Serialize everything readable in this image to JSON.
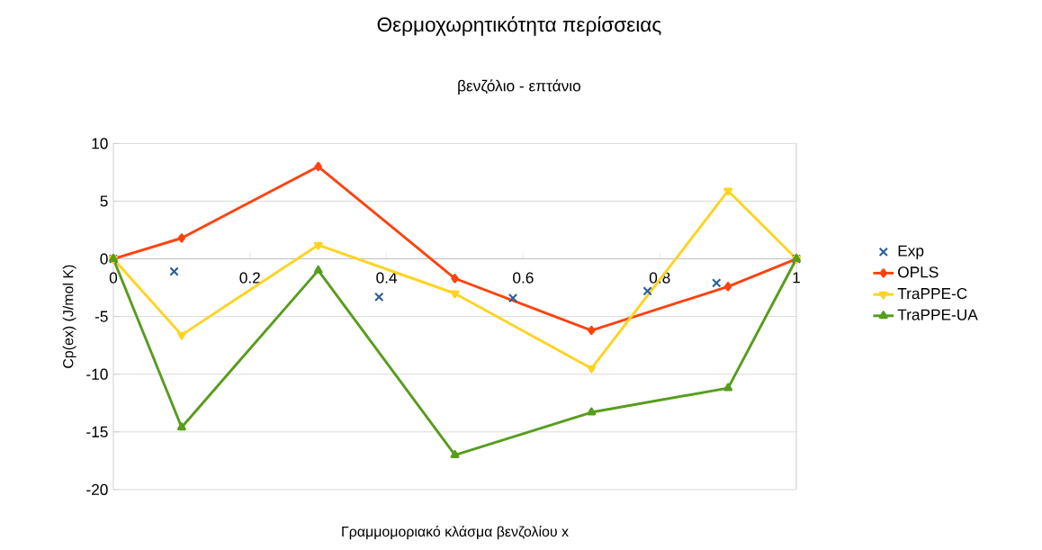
{
  "chart_data": {
    "type": "line",
    "title": "Θερμοχωρητικότητα περίσσειας",
    "subtitle": "βενζόλιο - επτάνιο",
    "xlabel": "Γραμμομοριακό κλάσμα βενζολίου x",
    "ylabel": "Cp(ex) (J/mol K)",
    "xlim": [
      0,
      1
    ],
    "ylim": [
      -20,
      10
    ],
    "xticks": [
      0,
      0.2,
      0.4,
      0.6,
      0.8,
      1
    ],
    "yticks": [
      -20,
      -15,
      -10,
      -5,
      0,
      5,
      10
    ],
    "grid": "y",
    "legend": "right",
    "series": [
      {
        "name": "Exp",
        "type": "scatter",
        "marker": "cross",
        "color": "#2a6099",
        "x": [
          0,
          0.089,
          0.389,
          0.585,
          0.782,
          0.883,
          1
        ],
        "values": [
          0,
          -1.1,
          -3.3,
          -3.4,
          -2.8,
          -2.1,
          0
        ]
      },
      {
        "name": "OPLS",
        "marker": "diamond",
        "color": "#ff420e",
        "x": [
          0,
          0.1,
          0.3,
          0.5,
          0.7,
          0.9,
          1
        ],
        "values": [
          0,
          1.8,
          8.0,
          -1.7,
          -6.2,
          -2.4,
          0
        ]
      },
      {
        "name": "TraPPE-C",
        "marker": "triangle-down",
        "color": "#ffd320",
        "x": [
          0,
          0.1,
          0.3,
          0.5,
          0.7,
          0.9,
          1
        ],
        "values": [
          0,
          -6.6,
          1.2,
          -3.0,
          -9.5,
          5.9,
          0
        ]
      },
      {
        "name": "TraPPE-UA",
        "marker": "triangle",
        "color": "#579d1c",
        "x": [
          0,
          0.1,
          0.3,
          0.5,
          0.7,
          0.9,
          1
        ],
        "values": [
          0,
          -14.6,
          -1.0,
          -17.0,
          -13.3,
          -11.2,
          0
        ]
      }
    ]
  }
}
